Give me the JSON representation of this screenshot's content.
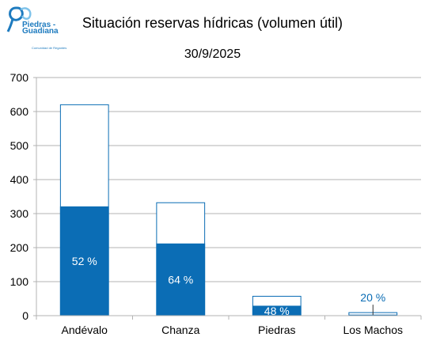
{
  "logo": {
    "text_line1": "Piedras -",
    "text_line2": "Guadiana",
    "text_small": "Comunidad de Regantes"
  },
  "colors": {
    "fill": "#0b6db5",
    "outline": "#0b6db5",
    "grid": "#b3b3b3",
    "axis": "#b3b3b3",
    "label_light": "#ffffff",
    "label_dark": "#0b6db5"
  },
  "chart_data": {
    "type": "bar",
    "title": "Situación reservas hídricas (volumen útil)",
    "subtitle": "30/9/2025",
    "categories": [
      "Andévalo",
      "Chanza",
      "Piedras",
      "Los Machos"
    ],
    "series": [
      {
        "values": [
          620,
          332,
          57,
          9
        ]
      },
      {
        "values": [
          320,
          211,
          28,
          1.8
        ]
      }
    ],
    "data_labels": [
      "52 %",
      "64 %",
      "48 %",
      "20 %"
    ],
    "ylim": [
      0,
      700
    ],
    "yticks": [
      0,
      100,
      200,
      300,
      400,
      500,
      600,
      700
    ],
    "grid": true,
    "legend": "none"
  }
}
